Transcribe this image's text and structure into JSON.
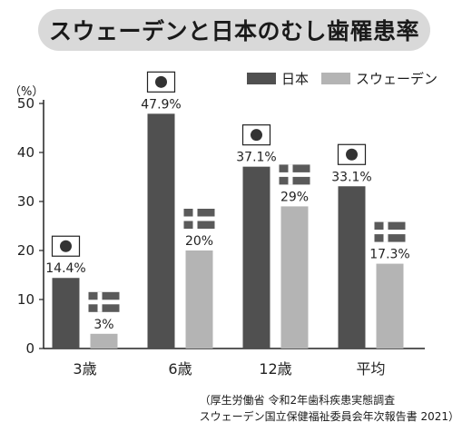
{
  "title": "スウェーデンと日本のむし歯罹患率",
  "unit": "（%）",
  "legend": [
    {
      "name": "日本",
      "color": "#505050"
    },
    {
      "name": "スウェーデン",
      "color": "#b4b4b4"
    }
  ],
  "source_lines": [
    "（厚生労働省 令和2年歯科疾患実態調査",
    "スウェーデン国立保健福祉委員会年次報告書 2021）"
  ],
  "chart_data": {
    "type": "bar",
    "categories": [
      "3歳",
      "6歳",
      "12歳",
      "平均"
    ],
    "series": [
      {
        "name": "日本",
        "values": [
          14.4,
          47.9,
          37.1,
          33.1
        ],
        "labels": [
          "14.4%",
          "47.9%",
          "37.1%",
          "33.1%"
        ],
        "color": "#505050",
        "flag": "japan-flag-icon"
      },
      {
        "name": "スウェーデン",
        "values": [
          3,
          20,
          29,
          17.3
        ],
        "labels": [
          "3%",
          "20%",
          "29%",
          "17.3%"
        ],
        "color": "#b4b4b4",
        "flag": "sweden-flag-icon"
      }
    ],
    "ylim": [
      0,
      50
    ],
    "yticks": [
      0,
      10,
      20,
      30,
      40,
      50
    ],
    "grid": false,
    "legend_position": "top-right"
  }
}
